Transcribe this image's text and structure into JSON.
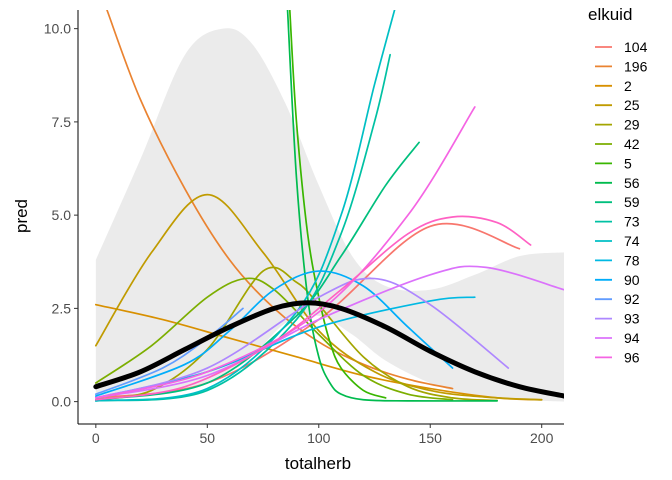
{
  "chart_data": {
    "type": "line",
    "title": "",
    "xlabel": "totalherb",
    "ylabel": "pred",
    "xlim": [
      -8,
      210
    ],
    "ylim": [
      -0.6,
      10.5
    ],
    "x_ticks": [
      0,
      50,
      100,
      150,
      200
    ],
    "y_ticks": [
      0.0,
      2.5,
      5.0,
      7.5,
      10.0
    ],
    "y_tick_labels": [
      "0.0",
      "2.5",
      "5.0",
      "7.5",
      "10.0"
    ],
    "grid": false,
    "legend": {
      "title": "elkuid",
      "position": "right"
    },
    "ribbon": {
      "color": "#ebebeb",
      "x": [
        0,
        20,
        40,
        57,
        70,
        85,
        100,
        115,
        130,
        150,
        170,
        190,
        210
      ],
      "upper": [
        3.8,
        6.5,
        9.3,
        10.0,
        9.6,
        8.0,
        5.8,
        3.9,
        3.1,
        3.0,
        3.4,
        3.9,
        4.0
      ],
      "lower": [
        0.05,
        0.15,
        0.35,
        0.7,
        1.2,
        2.1,
        2.3,
        1.8,
        1.1,
        0.5,
        0.15,
        0.05,
        0.0
      ]
    },
    "mean_line": {
      "color": "#000000",
      "x": [
        0,
        20,
        40,
        60,
        80,
        95,
        110,
        130,
        150,
        170,
        190,
        210
      ],
      "y": [
        0.4,
        0.8,
        1.4,
        2.0,
        2.5,
        2.65,
        2.5,
        2.0,
        1.35,
        0.8,
        0.4,
        0.15
      ]
    },
    "series": [
      {
        "name": "104",
        "color": "#F8766D",
        "x": [
          0,
          50,
          100,
          150,
          190
        ],
        "y": [
          0.1,
          0.5,
          2.2,
          4.7,
          4.1
        ]
      },
      {
        "name": "196",
        "color": "#EA8331",
        "x": [
          5,
          20,
          40,
          60,
          80,
          100,
          120,
          140,
          160
        ],
        "y": [
          10.5,
          8.1,
          5.7,
          3.8,
          2.5,
          1.6,
          1.0,
          0.6,
          0.35
        ]
      },
      {
        "name": "2",
        "color": "#D89000",
        "x": [
          0,
          30,
          60,
          90,
          120,
          150,
          180,
          200
        ],
        "y": [
          2.6,
          2.2,
          1.7,
          1.2,
          0.7,
          0.35,
          0.1,
          0.05
        ]
      },
      {
        "name": "25",
        "color": "#C09B00",
        "x": [
          0,
          25,
          50,
          75,
          100,
          125,
          150,
          175,
          200
        ],
        "y": [
          1.5,
          4.0,
          5.55,
          4.0,
          1.9,
          0.8,
          0.3,
          0.12,
          0.05
        ]
      },
      {
        "name": "29",
        "color": "#A3A500",
        "x": [
          0,
          25,
          50,
          75,
          90,
          100,
          120,
          140,
          160,
          180
        ],
        "y": [
          0.05,
          0.3,
          1.4,
          3.5,
          3.2,
          2.6,
          1.2,
          0.4,
          0.1,
          0.03
        ]
      },
      {
        "name": "42",
        "color": "#7CAE00",
        "x": [
          0,
          25,
          50,
          67,
          80,
          100,
          120,
          140,
          160
        ],
        "y": [
          0.5,
          1.5,
          2.8,
          3.3,
          3.0,
          1.8,
          0.7,
          0.2,
          0.05
        ]
      },
      {
        "name": "5",
        "color": "#39B600",
        "x": [
          87,
          90,
          95,
          100,
          105,
          110,
          120,
          130
        ],
        "y": [
          10.5,
          7.5,
          4.5,
          2.8,
          1.6,
          0.9,
          0.3,
          0.1
        ]
      },
      {
        "name": "56",
        "color": "#00BB4E",
        "x": [
          86,
          90,
          95,
          100,
          105,
          110,
          120,
          140,
          180
        ],
        "y": [
          10.5,
          6.0,
          2.8,
          1.2,
          0.5,
          0.2,
          0.05,
          0.02,
          0.02
        ]
      },
      {
        "name": "59",
        "color": "#00BF7D",
        "x": [
          0,
          50,
          90,
          110,
          130,
          145
        ],
        "y": [
          0.05,
          0.5,
          2.3,
          3.9,
          5.8,
          6.95
        ]
      },
      {
        "name": "73",
        "color": "#00C1A3",
        "x": [
          0,
          50,
          90,
          110,
          125,
          132
        ],
        "y": [
          0.02,
          0.3,
          2.2,
          4.5,
          7.5,
          9.3
        ]
      },
      {
        "name": "74",
        "color": "#00BFC4",
        "x": [
          0,
          50,
          90,
          110,
          125,
          134
        ],
        "y": [
          0.02,
          0.35,
          2.4,
          5.0,
          8.5,
          10.5
        ]
      },
      {
        "name": "78",
        "color": "#00B9E3",
        "x": [
          0,
          50,
          100,
          150,
          170
        ],
        "y": [
          0.1,
          0.8,
          2.0,
          2.7,
          2.8
        ]
      },
      {
        "name": "90",
        "color": "#00ADFA",
        "x": [
          0,
          40,
          60,
          80,
          100,
          120,
          140,
          160
        ],
        "y": [
          0.15,
          1.0,
          1.9,
          3.0,
          3.5,
          3.1,
          2.0,
          0.9
        ]
      },
      {
        "name": "92",
        "color": "#619CFF",
        "x": [
          0,
          30,
          50,
          66
        ],
        "y": [
          0.2,
          0.9,
          1.7,
          2.5
        ]
      },
      {
        "name": "93",
        "color": "#AE87FF",
        "x": [
          0,
          50,
          100,
          125,
          150,
          185
        ],
        "y": [
          0.1,
          0.9,
          2.8,
          3.3,
          2.6,
          0.9
        ]
      },
      {
        "name": "94",
        "color": "#DB72FB",
        "x": [
          0,
          50,
          100,
          150,
          175,
          210
        ],
        "y": [
          0.1,
          0.7,
          2.2,
          3.4,
          3.6,
          3.0
        ]
      },
      {
        "name": "96",
        "color": "#F564E3",
        "x": [
          0,
          50,
          100,
          140,
          170
        ],
        "y": [
          0.1,
          0.8,
          2.4,
          5.0,
          7.9
        ]
      },
      {
        "name": "",
        "color": "#FF61C3",
        "x": [
          0,
          40,
          80,
          110,
          140,
          160,
          180,
          195
        ],
        "y": [
          0.05,
          0.4,
          1.6,
          3.0,
          4.5,
          4.95,
          4.8,
          4.2
        ]
      }
    ]
  }
}
